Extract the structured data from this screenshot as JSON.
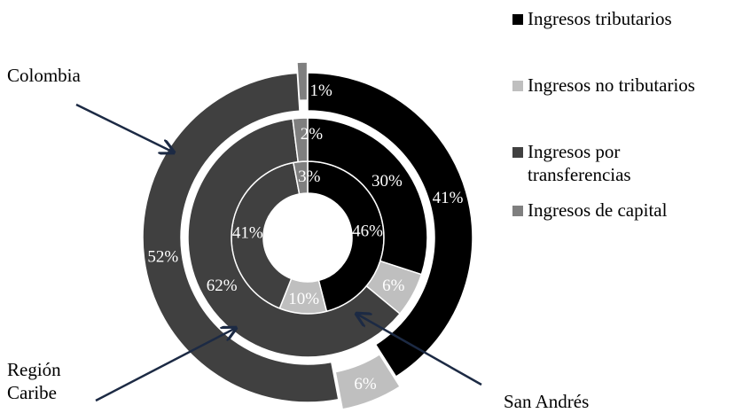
{
  "chart_data": {
    "type": "donut",
    "rings": [
      {
        "name": "San Andrés",
        "values": [
          46,
          10,
          41,
          3
        ],
        "labels": [
          "46%",
          "10%",
          "41%",
          "3%"
        ]
      },
      {
        "name": "Región Caribe",
        "values": [
          30,
          6,
          62,
          2
        ],
        "labels": [
          "30%",
          "6%",
          "62%",
          "2%"
        ]
      },
      {
        "name": "Colombia",
        "values": [
          41,
          6,
          52,
          1
        ],
        "labels": [
          "41%",
          "6%",
          "52%",
          "1%"
        ]
      }
    ],
    "series": [
      {
        "name": "Ingresos tributarios",
        "color": "#000000"
      },
      {
        "name": "Ingresos no tributarios",
        "color": "#bfbfbf"
      },
      {
        "name": "Ingresos por transferencias",
        "color": "#404040"
      },
      {
        "name": "Ingresos de capital",
        "color": "#7f7f7f"
      }
    ],
    "legend_position": "top-right"
  },
  "legend": {
    "items": [
      {
        "label": "Ingresos tributarios",
        "color": "#000000"
      },
      {
        "label": "Ingresos no tributarios",
        "color": "#bfbfbf"
      },
      {
        "label": "Ingresos por\ntransferencias",
        "color": "#404040"
      },
      {
        "label": "Ingresos de capital",
        "color": "#7f7f7f"
      }
    ]
  },
  "callouts": {
    "colombia": "Colombia",
    "region_caribe": "Región\nCaribe",
    "san_andres": "San Andrés"
  }
}
